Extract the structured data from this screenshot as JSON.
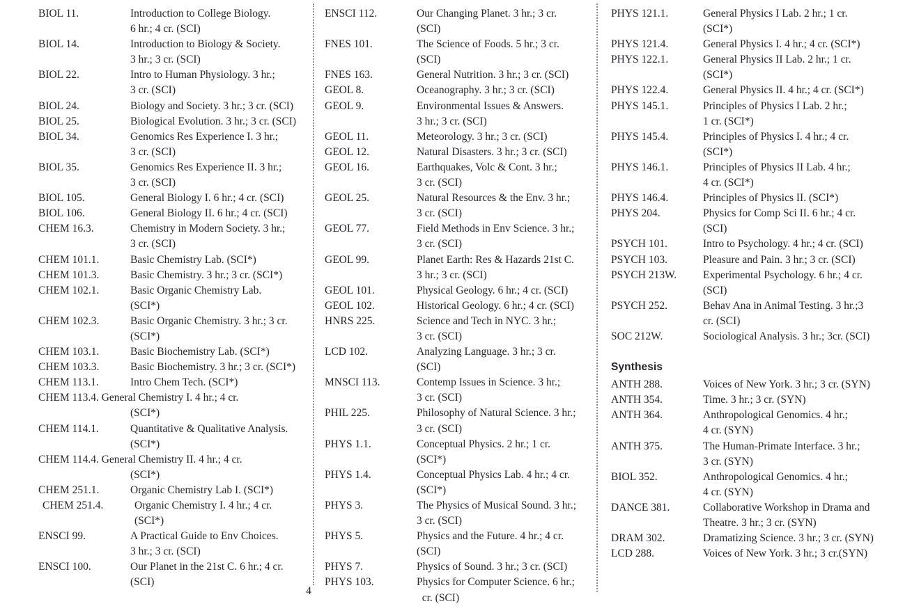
{
  "page": {
    "number": "4"
  },
  "colors": {
    "text": "#26262e",
    "separator": "#8f8f8f",
    "background": "#ffffff"
  },
  "columns": [
    {
      "items": [
        {
          "code": "BIOL 11.",
          "lines": [
            "Introduction to College Biology.",
            "6 hr.; 4 cr. (SCI)"
          ]
        },
        {
          "code": "BIOL 14.",
          "lines": [
            "Introduction to Biology & Society.",
            "3 hr.; 3 cr. (SCI)"
          ]
        },
        {
          "code": "BIOL 22.",
          "lines": [
            "Intro to Human Physiology. 3 hr.;",
            "3 cr. (SCI)"
          ]
        },
        {
          "code": "BIOL 24.",
          "lines": [
            "Biology and Society. 3 hr.; 3 cr. (SCI)"
          ]
        },
        {
          "code": "BIOL 25.",
          "lines": [
            "Biological Evolution. 3 hr.; 3 cr. (SCI)"
          ]
        },
        {
          "code": "BIOL 34.",
          "lines": [
            "Genomics Res Experience I. 3 hr.;",
            "3 cr. (SCI)"
          ]
        },
        {
          "code": "BIOL 35.",
          "lines": [
            "Genomics Res Experience II. 3 hr.;",
            "3 cr. (SCI)"
          ]
        },
        {
          "code": "BIOL 105.",
          "lines": [
            "General Biology I. 6 hr.; 4 cr. (SCI)"
          ]
        },
        {
          "code": "BIOL 106.",
          "lines": [
            "General Biology II. 6 hr.; 4 cr. (SCI)"
          ]
        },
        {
          "code": "CHEM 16.3.",
          "lines": [
            "Chemistry in Modern Society. 3 hr.;",
            "3 cr. (SCI)"
          ]
        },
        {
          "code": "CHEM 101.1.",
          "lines": [
            "Basic Chemistry Lab. (SCI*)"
          ]
        },
        {
          "code": "CHEM 101.3.",
          "lines": [
            "Basic Chemistry. 3 hr.; 3 cr. (SCI*)"
          ]
        },
        {
          "code": "CHEM 102.1.",
          "lines": [
            "Basic Organic Chemistry Lab.",
            "(SCI*)"
          ]
        },
        {
          "code": "CHEM 102.3.",
          "lines": [
            "Basic Organic Chemistry. 3 hr.; 3 cr.",
            "(SCI*)"
          ]
        },
        {
          "code": "CHEM 103.1.",
          "lines": [
            "Basic Biochemistry Lab. (SCI*)"
          ]
        },
        {
          "code": "CHEM 103.3.",
          "lines": [
            "Basic Biochemistry. 3 hr.; 3 cr. (SCI*)"
          ]
        },
        {
          "code": "CHEM 113.1.",
          "lines": [
            "Intro Chem Tech. (SCI*)"
          ]
        },
        {
          "code": "CHEM 113.4.",
          "runin": true,
          "lines": [
            "General Chemistry I. 4 hr.; 4 cr.",
            "(SCI*)"
          ]
        },
        {
          "code": "CHEM 114.1.",
          "lines": [
            "Quantitative & Qualitative Analysis.",
            "(SCI*)"
          ]
        },
        {
          "code": "CHEM 114.4.",
          "runin": true,
          "lines": [
            "General Chemistry II. 4 hr.; 4 cr.",
            "(SCI*)"
          ]
        },
        {
          "code": "CHEM 251.1.",
          "lines": [
            "Organic Chemistry Lab I. (SCI*)"
          ]
        },
        {
          "code": "CHEM 251.4.",
          "indent": true,
          "lines": [
            "Organic Chemistry I. 4 hr.; 4 cr.",
            "(SCI*)"
          ]
        },
        {
          "code": "ENSCI 99.",
          "lines": [
            "A Practical Guide to Env Choices.",
            "3 hr.; 3 cr. (SCI)"
          ]
        },
        {
          "code": "ENSCI 100.",
          "lines": [
            "Our Planet in the 21st C. 6 hr.; 4 cr.",
            "(SCI)"
          ]
        }
      ]
    },
    {
      "items": [
        {
          "code": "ENSCI 112.",
          "lines": [
            "Our Changing Planet. 3 hr.; 3 cr.",
            "(SCI)"
          ]
        },
        {
          "code": "FNES 101.",
          "lines": [
            "The Science of Foods. 5 hr.; 3 cr.",
            "(SCI)"
          ]
        },
        {
          "code": "FNES 163.",
          "lines": [
            "General Nutrition. 3 hr.; 3 cr. (SCI)"
          ]
        },
        {
          "code": "GEOL 8.",
          "lines": [
            "Oceanography. 3 hr.; 3 cr. (SCI)"
          ]
        },
        {
          "code": "GEOL 9.",
          "lines": [
            "Environmental Issues & Answers.",
            "3 hr.; 3 cr. (SCI)"
          ]
        },
        {
          "code": "GEOL 11.",
          "lines": [
            "Meteorology. 3 hr.; 3 cr. (SCI)"
          ]
        },
        {
          "code": "GEOL 12.",
          "lines": [
            "Natural Disasters. 3 hr.; 3 cr. (SCI)"
          ]
        },
        {
          "code": "GEOL 16.",
          "lines": [
            "Earthquakes, Volc & Cont. 3 hr.;",
            "3 cr. (SCI)"
          ]
        },
        {
          "code": "GEOL 25.",
          "lines": [
            "Natural Resources & the Env. 3 hr.;",
            "3 cr. (SCI)"
          ]
        },
        {
          "code": "GEOL 77.",
          "lines": [
            "Field Methods in Env Science. 3 hr.;",
            "3 cr. (SCI)"
          ]
        },
        {
          "code": "GEOL 99.",
          "lines": [
            "Planet Earth: Res & Hazards 21st C.",
            "3 hr.; 3 cr. (SCI)"
          ]
        },
        {
          "code": "GEOL 101.",
          "lines": [
            "Physical Geology. 6 hr.; 4 cr. (SCI)"
          ]
        },
        {
          "code": "GEOL 102.",
          "lines": [
            "Historical Geology. 6 hr.; 4 cr. (SCI)"
          ]
        },
        {
          "code": "HNRS 225.",
          "lines": [
            "Science and Tech in NYC. 3 hr.;",
            "3 cr. (SCI)"
          ]
        },
        {
          "code": "LCD 102.",
          "lines": [
            "Analyzing Language. 3 hr.; 3 cr.",
            "(SCI)"
          ]
        },
        {
          "code": "MNSCI 113.",
          "lines": [
            "Contemp Issues in Science. 3 hr.;",
            "3 cr. (SCI)"
          ]
        },
        {
          "code": "PHIL 225.",
          "lines": [
            "Philosophy of Natural Science. 3 hr.;",
            "3 cr. (SCI)"
          ]
        },
        {
          "code": "PHYS 1.1.",
          "lines": [
            "Conceptual Physics. 2 hr.; 1 cr.",
            "(SCI*)"
          ]
        },
        {
          "code": "PHYS 1.4.",
          "lines": [
            "Conceptual Physics Lab. 4 hr.; 4 cr.",
            "(SCI*)"
          ]
        },
        {
          "code": "PHYS 3.",
          "lines": [
            "The Physics of Musical Sound. 3 hr.;",
            "3 cr. (SCI)"
          ]
        },
        {
          "code": "PHYS 5.",
          "lines": [
            "Physics and the Future. 4 hr.; 4 cr.",
            "(SCI)"
          ]
        },
        {
          "code": "PHYS 7.",
          "lines": [
            "Physics of Sound. 3 hr.; 3 cr. (SCI)"
          ]
        },
        {
          "code": "PHYS 103.",
          "lines": [
            "Physics for Computer Science. 6 hr.;",
            "  cr. (SCI)"
          ]
        }
      ]
    },
    {
      "items": [
        {
          "code": "PHYS 121.1.",
          "lines": [
            "General Physics I Lab. 2 hr.; 1 cr.",
            "(SCI*)"
          ]
        },
        {
          "code": "PHYS 121.4.",
          "lines": [
            "General Physics I. 4 hr.; 4 cr. (SCI*)"
          ]
        },
        {
          "code": "PHYS 122.1.",
          "lines": [
            "General Physics II Lab. 2 hr.; 1 cr.",
            "(SCI*)"
          ]
        },
        {
          "code": "PHYS 122.4.",
          "lines": [
            "General Physics II. 4 hr.; 4 cr. (SCI*)"
          ]
        },
        {
          "code": "PHYS 145.1.",
          "lines": [
            "Principles of Physics I Lab. 2 hr.;",
            "1 cr. (SCI*)"
          ]
        },
        {
          "code": "PHYS 145.4.",
          "lines": [
            "Principles of Physics I. 4 hr.; 4 cr.",
            "(SCI*)"
          ]
        },
        {
          "code": "PHYS 146.1.",
          "lines": [
            "Principles of Physics II Lab. 4 hr.;",
            "4 cr. (SCI*)"
          ]
        },
        {
          "code": "PHYS 146.4.",
          "lines": [
            "Principles of Physics II. (SCI*)"
          ]
        },
        {
          "code": "PHYS 204.",
          "lines": [
            "Physics for Comp Sci II. 6 hr.; 4 cr.",
            "(SCI)"
          ]
        },
        {
          "code": "PSYCH 101.",
          "lines": [
            "Intro to Psychology. 4 hr.; 4 cr. (SCI)"
          ]
        },
        {
          "code": "PSYCH 103.",
          "lines": [
            "Pleasure and Pain. 3 hr.; 3 cr. (SCI)"
          ]
        },
        {
          "code": "PSYCH 213W.",
          "lines": [
            "Experimental Psychology. 6 hr.; 4 cr.",
            "(SCI)"
          ]
        },
        {
          "code": "PSYCH 252.",
          "lines": [
            "Behav Ana in Animal Testing. 3 hr.;3",
            "cr. (SCI)"
          ]
        },
        {
          "code": "SOC 212W.",
          "lines": [
            "Sociological Analysis. 3 hr.; 3cr. (SCI)"
          ]
        },
        {
          "heading": "Synthesis"
        },
        {
          "code": "ANTH 288.",
          "lines": [
            "Voices of New York. 3 hr.; 3 cr. (SYN)"
          ]
        },
        {
          "code": "ANTH 354.",
          "lines": [
            "Time. 3 hr.; 3 cr. (SYN)"
          ]
        },
        {
          "code": "ANTH 364.",
          "lines": [
            "Anthropological Genomics. 4 hr.;",
            "4 cr. (SYN)"
          ]
        },
        {
          "code": "ANTH 375.",
          "lines": [
            "The Human-Primate Interface. 3 hr.;",
            "3 cr. (SYN)"
          ]
        },
        {
          "code": "BIOL 352.",
          "lines": [
            "Anthropological Genomics. 4 hr.;",
            "4 cr. (SYN)"
          ]
        },
        {
          "code": "DANCE 381.",
          "lines": [
            "Collaborative Workshop in Drama and",
            "Theatre. 3 hr.; 3 cr. (SYN)"
          ]
        },
        {
          "code": "DRAM 302.",
          "lines": [
            "Dramatizing Science. 3 hr.; 3 cr. (SYN)"
          ]
        },
        {
          "code": "LCD 288.",
          "lines": [
            "Voices of New York. 3 hr.; 3 cr.(SYN)"
          ]
        }
      ]
    }
  ]
}
